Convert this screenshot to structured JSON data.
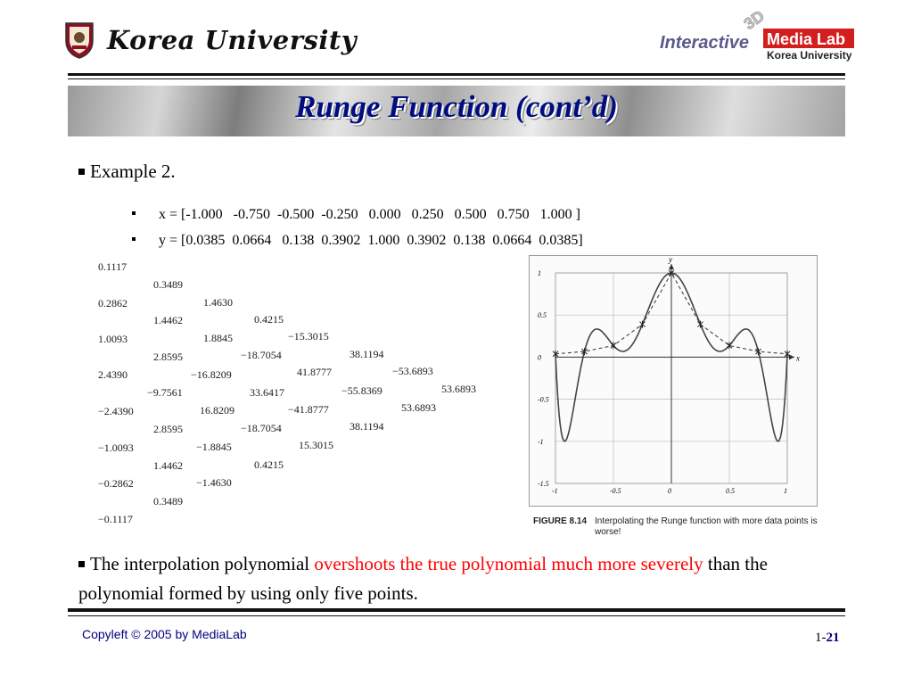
{
  "header": {
    "university_name": "Korea University",
    "lab_logo": {
      "interactive": "Interactive",
      "three_d": "3D",
      "media_lab": "Media Lab",
      "korea_university": "Korea University"
    }
  },
  "slide": {
    "title": "Runge Function (cont’d)",
    "example_label": "Example 2.",
    "x_vector": "x = [-1.000   -0.750  -0.500  -0.250   0.000   0.250   0.500   0.750   1.000 ]",
    "y_vector": "y = [0.0385  0.0664   0.138  0.3902  1.000  0.3902  0.138  0.0664  0.0385]",
    "table_columns": [
      [
        "0.1117",
        "0.2862",
        "1.0093",
        "2.4390",
        "−2.4390",
        "−1.0093",
        "−0.2862",
        "−0.1117"
      ],
      [
        "0.3489",
        "1.4462",
        "2.8595",
        "−9.7561",
        "2.8595",
        "1.4462",
        "0.3489"
      ],
      [
        "1.4630",
        "1.8845",
        "−16.8209",
        "16.8209",
        "−1.8845",
        "−1.4630"
      ],
      [
        "0.4215",
        "−18.7054",
        "33.6417",
        "−18.7054",
        "0.4215"
      ],
      [
        "−15.3015",
        "41.8777",
        "−41.8777",
        "15.3015"
      ],
      [
        "38.1194",
        "−55.8369",
        "38.1194"
      ],
      [
        "−53.6893",
        "53.6893"
      ],
      [
        "53.6893"
      ]
    ],
    "figure": {
      "caption_label": "FIGURE 8.14",
      "caption_text": "Interpolating the Runge function with more data points is worse!",
      "x_axis_label": "x",
      "y_axis_label": "y",
      "x_ticks": [
        "-1",
        "-0.5",
        "0",
        "0.5",
        "1"
      ],
      "y_ticks": [
        "1",
        "0.5",
        "0",
        "-0.5",
        "-1",
        "-1.5"
      ]
    },
    "conclusion": {
      "part1": "The interpolation polynomial ",
      "highlight": "overshoots the true polynomial much more severely",
      "part2": " than the polynomial formed by using only five points."
    }
  },
  "chart_data": {
    "type": "line",
    "x": [
      -1.0,
      -0.75,
      -0.5,
      -0.25,
      0.0,
      0.25,
      0.5,
      0.75,
      1.0
    ],
    "series": [
      {
        "values": [
          0.0385,
          0.0664,
          0.138,
          0.3902,
          1.0,
          0.3902,
          0.138,
          0.0664,
          0.0385
        ]
      }
    ],
    "xlabel": "x",
    "ylabel": "y",
    "xlim": [
      -1,
      1
    ],
    "ylim": [
      -1.5,
      1
    ],
    "grid": true
  },
  "footer": {
    "copyleft": "Copyleft © 2005 by MediaLab",
    "page_prefix": "1-",
    "page_number": "21"
  }
}
